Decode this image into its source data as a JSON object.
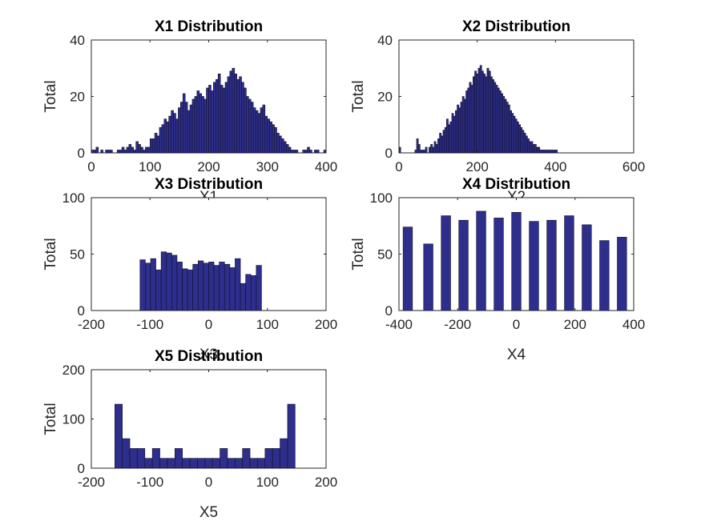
{
  "colors": {
    "bar_fill": "#2e2e8c",
    "bar_edge": "#101028",
    "axis": "#262626"
  },
  "chart_data": [
    {
      "type": "bar",
      "title": "X1 Distribution",
      "xlabel": "X1",
      "ylabel": "Total",
      "xlim": [
        0,
        400
      ],
      "ylim": [
        0,
        40
      ],
      "xticks": [
        "0",
        "100",
        "200",
        "300",
        "400"
      ],
      "yticks": [
        "0",
        "20",
        "40"
      ],
      "bin_start": 0,
      "bin_width": 4,
      "values": [
        1,
        1,
        2,
        0,
        1,
        0,
        1,
        1,
        1,
        0,
        0,
        1,
        1,
        2,
        1,
        2,
        3,
        2,
        1,
        4,
        3,
        2,
        1,
        2,
        2,
        5,
        5,
        7,
        6,
        9,
        10,
        12,
        11,
        13,
        15,
        14,
        12,
        16,
        18,
        21,
        18,
        15,
        17,
        19,
        20,
        22,
        21,
        20,
        19,
        23,
        24,
        22,
        25,
        26,
        28,
        24,
        23,
        25,
        27,
        29,
        30,
        28,
        26,
        27,
        25,
        23,
        20,
        19,
        18,
        16,
        15,
        14,
        16,
        17,
        13,
        12,
        11,
        10,
        9,
        7,
        6,
        5,
        4,
        3,
        2,
        1,
        1,
        1,
        0,
        0,
        1,
        1,
        2,
        1,
        0,
        1,
        1,
        0,
        0,
        1
      ]
    },
    {
      "type": "bar",
      "title": "X2 Distribution",
      "xlabel": "X2",
      "ylabel": "Total",
      "xlim": [
        0,
        600
      ],
      "ylim": [
        0,
        40
      ],
      "xticks": [
        "0",
        "200",
        "400",
        "600"
      ],
      "yticks": [
        "0",
        "20",
        "40"
      ],
      "bin_start": 0,
      "bin_width": 4.5,
      "values": [
        2,
        0,
        0,
        0,
        0,
        0,
        0,
        0,
        0,
        1,
        5,
        3,
        1,
        1,
        1,
        2,
        0,
        2,
        3,
        2,
        4,
        3,
        5,
        7,
        6,
        8,
        9,
        12,
        10,
        11,
        14,
        13,
        15,
        17,
        16,
        18,
        20,
        19,
        22,
        23,
        25,
        24,
        27,
        29,
        28,
        30,
        31,
        29,
        28,
        27,
        30,
        29,
        27,
        26,
        25,
        24,
        23,
        22,
        21,
        20,
        19,
        18,
        17,
        15,
        14,
        13,
        12,
        11,
        10,
        9,
        8,
        7,
        6,
        5,
        4,
        4,
        3,
        3,
        2,
        2,
        1,
        1,
        1,
        1,
        1,
        1,
        1,
        1,
        1,
        1
      ]
    },
    {
      "type": "bar",
      "title": "X3 Distribution",
      "xlabel": "X3",
      "ylabel": "Total",
      "xlim": [
        -200,
        200
      ],
      "ylim": [
        0,
        100
      ],
      "xticks": [
        "-200",
        "-100",
        "0",
        "100",
        "200"
      ],
      "yticks": [
        "0",
        "50",
        "100"
      ],
      "bin_start": -117,
      "bin_width": 9,
      "values": [
        45,
        42,
        46,
        36,
        52,
        51,
        49,
        43,
        37,
        36,
        41,
        44,
        42,
        43,
        40,
        43,
        41,
        38,
        46,
        24,
        32,
        31,
        40
      ]
    },
    {
      "type": "bar",
      "title": "X4 Distribution",
      "xlabel": "X4",
      "ylabel": "Total",
      "xlim": [
        -400,
        400
      ],
      "ylim": [
        0,
        100
      ],
      "xticks": [
        "-400",
        "-200",
        "0",
        "200",
        "400"
      ],
      "yticks": [
        "0",
        "50",
        "100"
      ],
      "bar_centers": [
        -370,
        -300,
        -240,
        -180,
        -120,
        -60,
        0,
        60,
        120,
        180,
        240,
        300,
        360
      ],
      "bar_width": 32,
      "values": [
        74,
        59,
        84,
        80,
        88,
        82,
        87,
        79,
        80,
        84,
        76,
        62,
        65
      ]
    },
    {
      "type": "bar",
      "title": "X5 Distribution",
      "xlabel": "X5",
      "ylabel": "Total",
      "xlim": [
        -200,
        200
      ],
      "ylim": [
        0,
        200
      ],
      "xticks": [
        "-200",
        "-100",
        "0",
        "100",
        "200"
      ],
      "yticks": [
        "0",
        "100",
        "200"
      ],
      "bin_start": -160,
      "bin_width": 12.8,
      "values": [
        130,
        60,
        40,
        40,
        20,
        40,
        20,
        20,
        40,
        20,
        20,
        20,
        20,
        20,
        40,
        20,
        20,
        40,
        20,
        20,
        40,
        40,
        60,
        130
      ]
    }
  ]
}
